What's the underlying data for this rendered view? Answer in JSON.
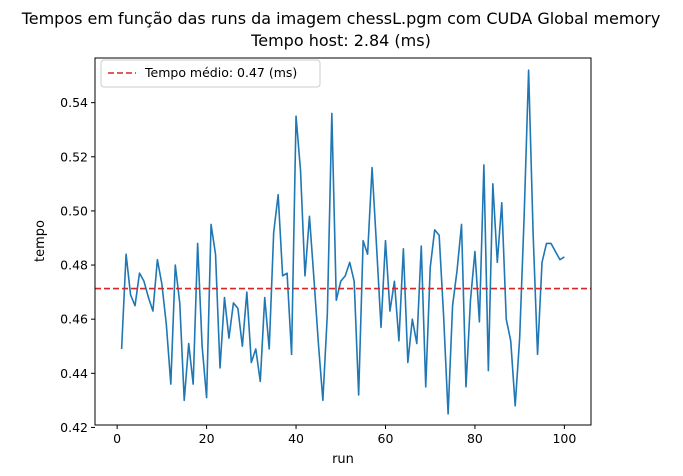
{
  "chart_data": {
    "type": "line",
    "title": "Tempos em função das runs da imagem chessL.pgm com CUDA Global memory",
    "subtitle": "Tempo host: 2.84 (ms)",
    "xlabel": "run",
    "ylabel": "tempo",
    "xlim": [
      -4.95,
      105.95
    ],
    "ylim": [
      0.4209,
      0.5565
    ],
    "xticks": [
      0,
      20,
      40,
      60,
      80,
      100
    ],
    "yticks": [
      0.42,
      0.44,
      0.46,
      0.48,
      0.5,
      0.52,
      0.54
    ],
    "ytick_labels": [
      "0.42",
      "0.44",
      "0.46",
      "0.48",
      "0.50",
      "0.52",
      "0.54"
    ],
    "grid": false,
    "legend_position": "top-left",
    "series": [
      {
        "color": "#1f77b4",
        "x": [
          1,
          2,
          3,
          4,
          5,
          6,
          7,
          8,
          9,
          10,
          11,
          12,
          13,
          14,
          15,
          16,
          17,
          18,
          19,
          20,
          21,
          22,
          23,
          24,
          25,
          26,
          27,
          28,
          29,
          30,
          31,
          32,
          33,
          34,
          35,
          36,
          37,
          38,
          39,
          40,
          41,
          42,
          43,
          44,
          45,
          46,
          47,
          48,
          49,
          50,
          51,
          52,
          53,
          54,
          55,
          56,
          57,
          58,
          59,
          60,
          61,
          62,
          63,
          64,
          65,
          66,
          67,
          68,
          69,
          70,
          71,
          72,
          73,
          74,
          75,
          76,
          77,
          78,
          79,
          80,
          81,
          82,
          83,
          84,
          85,
          86,
          87,
          88,
          89,
          90,
          91,
          92,
          93,
          94,
          95,
          96,
          97,
          98,
          99,
          100
        ],
        "values": [
          0.449,
          0.484,
          0.469,
          0.465,
          0.477,
          0.474,
          0.468,
          0.463,
          0.482,
          0.473,
          0.458,
          0.436,
          0.48,
          0.466,
          0.43,
          0.451,
          0.436,
          0.488,
          0.45,
          0.431,
          0.495,
          0.484,
          0.442,
          0.468,
          0.453,
          0.466,
          0.464,
          0.45,
          0.47,
          0.444,
          0.449,
          0.437,
          0.468,
          0.449,
          0.492,
          0.506,
          0.476,
          0.477,
          0.447,
          0.535,
          0.515,
          0.476,
          0.498,
          0.475,
          0.451,
          0.43,
          0.462,
          0.536,
          0.467,
          0.474,
          0.476,
          0.481,
          0.474,
          0.432,
          0.489,
          0.484,
          0.516,
          0.487,
          0.457,
          0.489,
          0.463,
          0.474,
          0.452,
          0.486,
          0.444,
          0.46,
          0.451,
          0.487,
          0.435,
          0.479,
          0.493,
          0.491,
          0.461,
          0.425,
          0.465,
          0.478,
          0.495,
          0.435,
          0.467,
          0.485,
          0.459,
          0.517,
          0.441,
          0.51,
          0.481,
          0.503,
          0.46,
          0.452,
          0.428,
          0.453,
          0.498,
          0.552,
          0.492,
          0.447,
          0.481,
          0.488,
          0.488,
          0.485,
          0.482,
          0.483
        ]
      }
    ],
    "reference_line": {
      "label": "Tempo médio: 0.47 (ms)",
      "value": 0.4713,
      "color": "#d62728",
      "style": "dashed"
    }
  }
}
